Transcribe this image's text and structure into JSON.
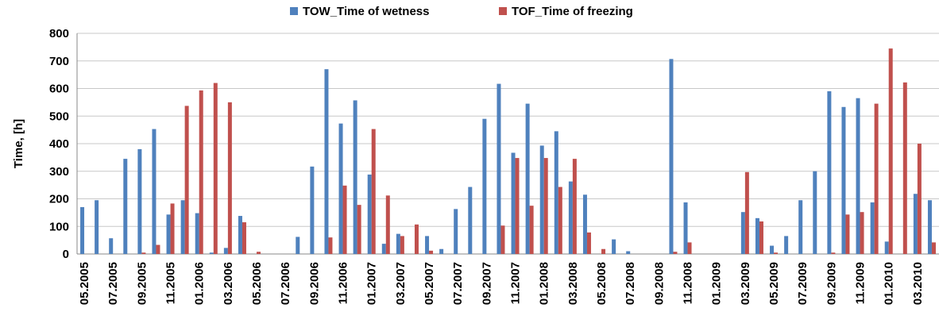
{
  "chart_data": {
    "type": "bar",
    "categories": [
      "05.2005",
      null,
      "07.2005",
      null,
      "09.2005",
      null,
      "11.2005",
      null,
      "01.2006",
      null,
      "03.2006",
      null,
      "05.2006",
      null,
      "07.2006",
      null,
      "09.2006",
      null,
      "11.2006",
      null,
      "01.2007",
      null,
      "03.2007",
      null,
      "05.2007",
      null,
      "07.2007",
      null,
      "09.2007",
      null,
      "11.2007",
      null,
      "01.2008",
      null,
      "03.2008",
      null,
      "05.2008",
      null,
      "07.2008",
      null,
      "09.2008",
      null,
      "11.2008",
      null,
      "01.2009",
      null,
      "03.2009",
      null,
      "05.2009",
      null,
      "07.2009",
      null,
      "09.2009",
      null,
      "11.2009",
      null,
      "01.2010",
      null,
      "03.2010",
      null
    ],
    "series": [
      {
        "name": "TOW_Time of wetness",
        "color": "#4f81bd",
        "values": [
          170,
          195,
          57,
          345,
          380,
          453,
          143,
          195,
          148,
          5,
          22,
          138,
          0,
          0,
          0,
          62,
          317,
          670,
          473,
          557,
          288,
          37,
          73,
          0,
          65,
          18,
          163,
          243,
          490,
          617,
          367,
          545,
          393,
          445,
          263,
          215,
          0,
          53,
          10,
          0,
          0,
          707,
          187,
          0,
          0,
          0,
          152,
          130,
          30,
          65,
          195,
          300,
          590,
          533,
          565,
          187,
          45,
          0,
          218,
          195
        ]
      },
      {
        "name": "TOF_Time of freezing",
        "color": "#c0504d",
        "values": [
          0,
          0,
          0,
          0,
          5,
          33,
          183,
          537,
          593,
          620,
          550,
          115,
          8,
          0,
          0,
          0,
          0,
          60,
          248,
          178,
          453,
          212,
          65,
          107,
          12,
          0,
          0,
          0,
          0,
          103,
          348,
          175,
          348,
          243,
          345,
          78,
          18,
          0,
          0,
          0,
          0,
          8,
          42,
          0,
          0,
          0,
          297,
          118,
          5,
          0,
          0,
          0,
          5,
          143,
          152,
          545,
          745,
          622,
          400,
          42
        ]
      }
    ],
    "y_label": "Time, [h]",
    "ylim": [
      0,
      800
    ],
    "yticks": [
      0,
      100,
      200,
      300,
      400,
      500,
      600,
      700,
      800
    ],
    "grid": true,
    "legend": "top"
  }
}
